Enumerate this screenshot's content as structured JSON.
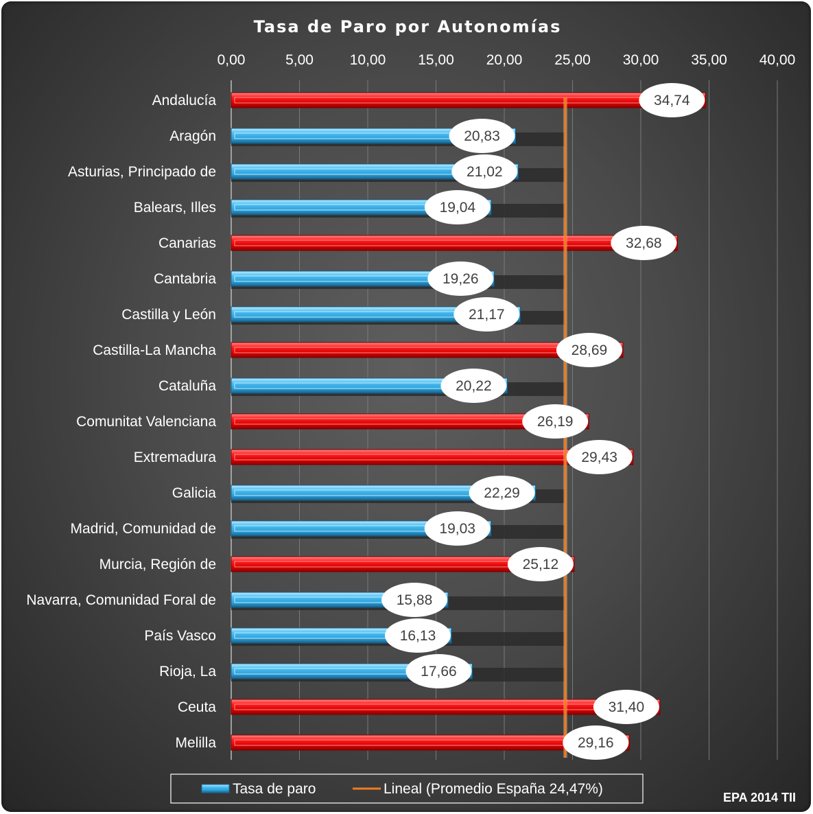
{
  "chart_data": {
    "type": "bar",
    "orientation": "horizontal",
    "title": "Tasa de Paro por Autonomías",
    "note": "EPA 2014 TII",
    "xlim": [
      0,
      40
    ],
    "x_ticks": [
      "0,00",
      "5,00",
      "10,00",
      "15,00",
      "20,00",
      "25,00",
      "30,00",
      "35,00",
      "40,00"
    ],
    "x_axis_position": "top",
    "grid": true,
    "legend_position": "bottom",
    "categories": [
      "Andalucía",
      "Aragón",
      "Asturias, Principado de",
      "Balears, Illes",
      "Canarias",
      "Cantabria",
      "Castilla y León",
      "Castilla-La Mancha",
      "Cataluña",
      "Comunitat Valenciana",
      "Extremadura",
      "Galicia",
      "Madrid, Comunidad de",
      "Murcia, Región de",
      "Navarra, Comunidad Foral de",
      "País Vasco",
      "Rioja, La",
      "Ceuta",
      "Melilla"
    ],
    "series": [
      {
        "name": "Tasa de paro",
        "values": [
          34.74,
          20.83,
          21.02,
          19.04,
          32.68,
          19.26,
          21.17,
          28.69,
          20.22,
          26.19,
          29.43,
          22.29,
          19.03,
          25.12,
          15.88,
          16.13,
          17.66,
          31.4,
          29.16
        ],
        "labels": [
          "34,74",
          "20,83",
          "21,02",
          "19,04",
          "32,68",
          "19,26",
          "21,17",
          "28,69",
          "20,22",
          "26,19",
          "29,43",
          "22,29",
          "19,03",
          "25,12",
          "15,88",
          "16,13",
          "17,66",
          "31,40",
          "29,16"
        ]
      },
      {
        "name": "Lineal (Promedio España  24,47%)",
        "type": "line",
        "value": 24.47
      }
    ],
    "colors": {
      "above_average": "#ff1010",
      "below_average": "#3fb5ee",
      "average_line": "#f07d1f",
      "label_bubble": "#ffffff"
    }
  }
}
